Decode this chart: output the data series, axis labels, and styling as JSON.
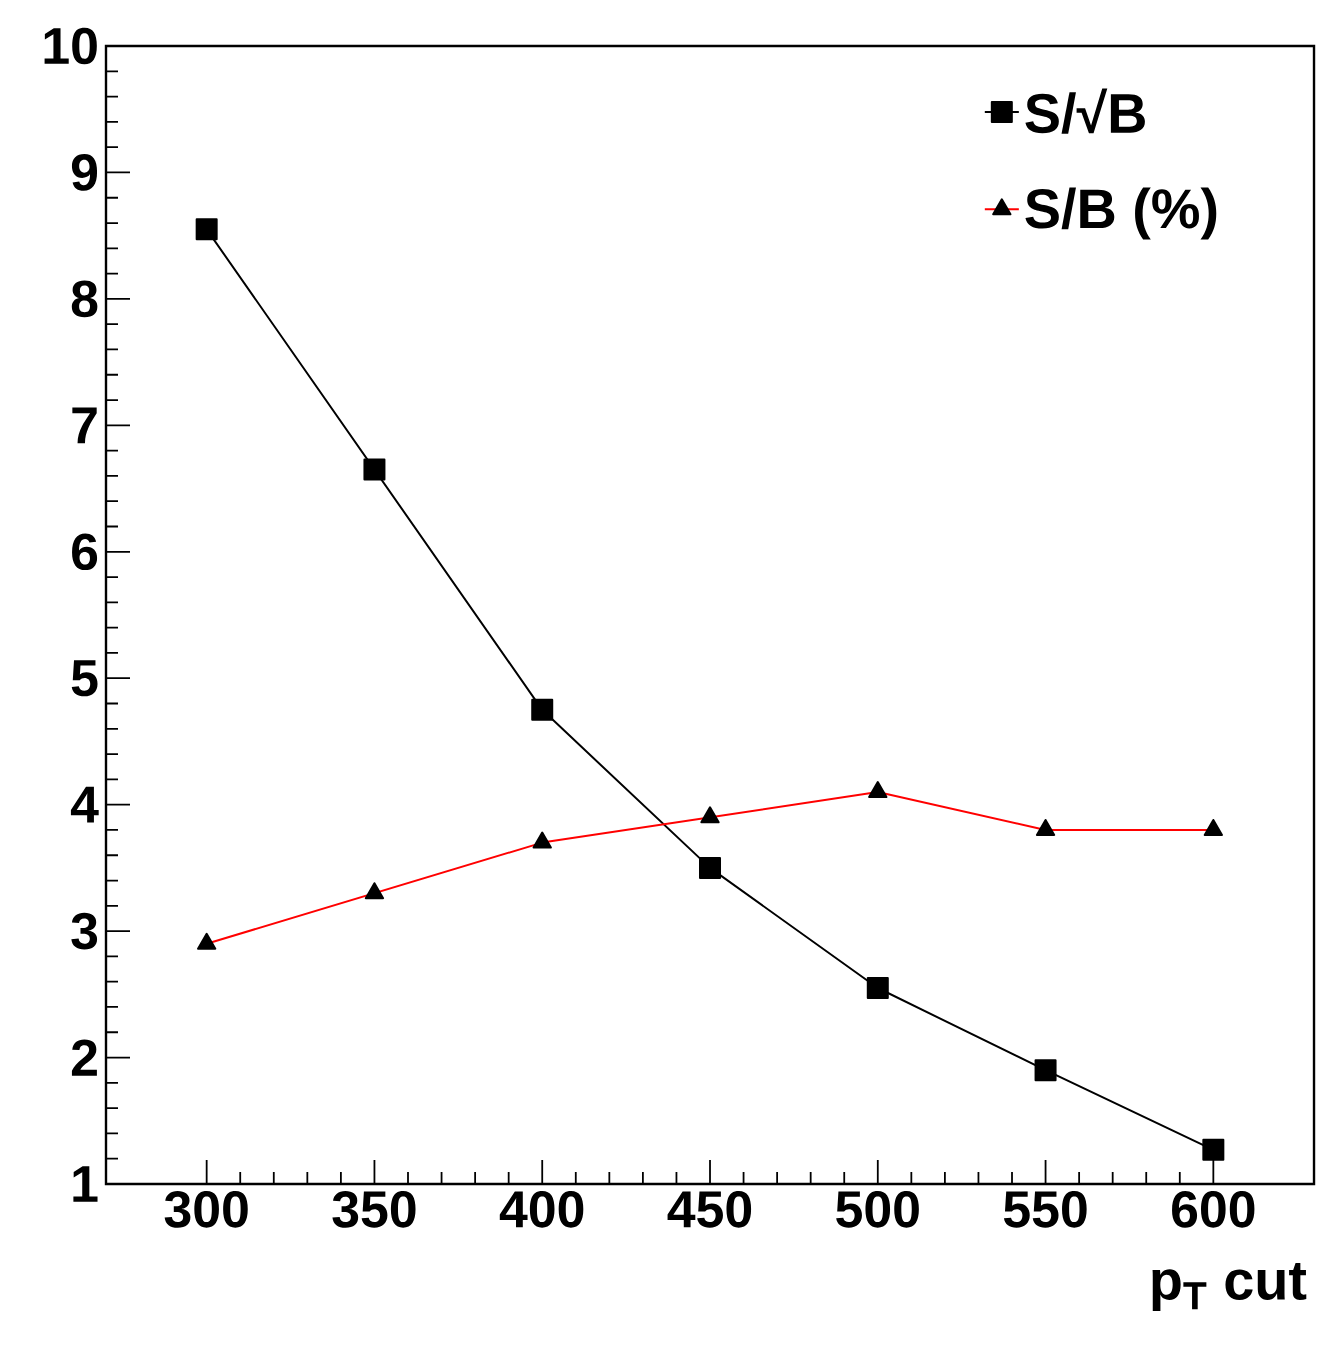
{
  "chart_data": {
    "type": "line",
    "xlabel": "p$_{T}$ cut",
    "x": [
      300,
      350,
      400,
      450,
      500,
      550,
      600
    ],
    "series": [
      {
        "name": "S/√B",
        "color": "#000000",
        "marker": "square",
        "values": [
          8.55,
          6.65,
          4.75,
          3.5,
          2.55,
          1.9,
          1.27
        ]
      },
      {
        "name": "S/B (%)",
        "color": "#ff0000",
        "marker": "triangle",
        "values": [
          2.9,
          3.3,
          3.7,
          3.9,
          4.1,
          3.8,
          3.8
        ]
      }
    ],
    "xlim": [
      270,
      630
    ],
    "ylim": [
      1,
      10
    ],
    "xticks": [
      300,
      350,
      400,
      450,
      500,
      550,
      600
    ],
    "yticks": [
      1,
      2,
      3,
      4,
      5,
      6,
      7,
      8,
      9,
      10
    ],
    "grid": false,
    "legend": "top right",
    "line_style": "solid"
  }
}
